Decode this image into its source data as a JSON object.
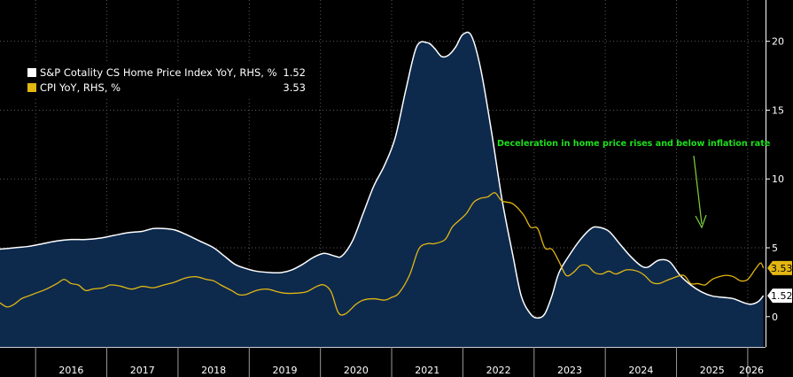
{
  "chart_data": {
    "type": "area",
    "legend_position": "top-left",
    "grid": true,
    "annotation": "Deceleration in home price rises and below inflation rate",
    "x_tick_labels": [
      "2016",
      "2017",
      "2018",
      "2019",
      "2020",
      "2021",
      "2022",
      "2023",
      "2024",
      "2025",
      "2026"
    ],
    "y_tick_labels": [
      "0",
      "5",
      "10",
      "15",
      "20"
    ],
    "ylim": [
      -2.2,
      23
    ],
    "xlim": [
      2015.5,
      2026.25
    ],
    "series": [
      {
        "name": "S&P Cotality CS Home Price Index YoY, RHS, %",
        "value_label": "1.52",
        "color": "#ffffff",
        "fill": "#0d2a4d",
        "points": [
          [
            2015.5,
            4.9
          ],
          [
            2015.7,
            5.0
          ],
          [
            2015.9,
            5.1
          ],
          [
            2016.1,
            5.3
          ],
          [
            2016.3,
            5.5
          ],
          [
            2016.5,
            5.6
          ],
          [
            2016.7,
            5.6
          ],
          [
            2016.9,
            5.7
          ],
          [
            2017.1,
            5.9
          ],
          [
            2017.3,
            6.1
          ],
          [
            2017.5,
            6.2
          ],
          [
            2017.65,
            6.4
          ],
          [
            2017.8,
            6.4
          ],
          [
            2017.95,
            6.3
          ],
          [
            2018.1,
            6.0
          ],
          [
            2018.3,
            5.5
          ],
          [
            2018.5,
            5.0
          ],
          [
            2018.65,
            4.4
          ],
          [
            2018.8,
            3.8
          ],
          [
            2018.95,
            3.5
          ],
          [
            2019.1,
            3.3
          ],
          [
            2019.3,
            3.2
          ],
          [
            2019.45,
            3.2
          ],
          [
            2019.6,
            3.4
          ],
          [
            2019.75,
            3.8
          ],
          [
            2019.9,
            4.3
          ],
          [
            2020.05,
            4.6
          ],
          [
            2020.2,
            4.4
          ],
          [
            2020.3,
            4.4
          ],
          [
            2020.45,
            5.5
          ],
          [
            2020.6,
            7.5
          ],
          [
            2020.75,
            9.5
          ],
          [
            2020.9,
            11.0
          ],
          [
            2021.05,
            13.0
          ],
          [
            2021.2,
            16.5
          ],
          [
            2021.35,
            19.6
          ],
          [
            2021.5,
            19.9
          ],
          [
            2021.6,
            19.5
          ],
          [
            2021.7,
            18.9
          ],
          [
            2021.8,
            19.0
          ],
          [
            2021.9,
            19.6
          ],
          [
            2022.0,
            20.5
          ],
          [
            2022.12,
            20.4
          ],
          [
            2022.25,
            18.0
          ],
          [
            2022.4,
            13.5
          ],
          [
            2022.55,
            8.5
          ],
          [
            2022.7,
            4.5
          ],
          [
            2022.82,
            1.5
          ],
          [
            2022.95,
            0.2
          ],
          [
            2023.05,
            -0.1
          ],
          [
            2023.15,
            0.2
          ],
          [
            2023.25,
            1.5
          ],
          [
            2023.35,
            3.2
          ],
          [
            2023.5,
            4.5
          ],
          [
            2023.65,
            5.6
          ],
          [
            2023.8,
            6.4
          ],
          [
            2023.9,
            6.5
          ],
          [
            2024.05,
            6.2
          ],
          [
            2024.2,
            5.3
          ],
          [
            2024.35,
            4.4
          ],
          [
            2024.5,
            3.7
          ],
          [
            2024.6,
            3.6
          ],
          [
            2024.75,
            4.1
          ],
          [
            2024.9,
            4.0
          ],
          [
            2025.05,
            3.0
          ],
          [
            2025.2,
            2.3
          ],
          [
            2025.35,
            1.8
          ],
          [
            2025.5,
            1.5
          ],
          [
            2025.65,
            1.4
          ],
          [
            2025.8,
            1.3
          ],
          [
            2025.95,
            1.0
          ],
          [
            2026.05,
            0.9
          ],
          [
            2026.15,
            1.1
          ],
          [
            2026.22,
            1.52
          ]
        ]
      },
      {
        "name": "CPI YoY, RHS, %",
        "value_label": "3.53",
        "color": "#e2b613",
        "points": [
          [
            2015.5,
            1.0
          ],
          [
            2015.6,
            0.7
          ],
          [
            2015.7,
            0.9
          ],
          [
            2015.8,
            1.3
          ],
          [
            2015.9,
            1.5
          ],
          [
            2016.0,
            1.7
          ],
          [
            2016.15,
            2.0
          ],
          [
            2016.3,
            2.4
          ],
          [
            2016.4,
            2.7
          ],
          [
            2016.5,
            2.4
          ],
          [
            2016.6,
            2.3
          ],
          [
            2016.7,
            1.9
          ],
          [
            2016.8,
            2.0
          ],
          [
            2016.95,
            2.1
          ],
          [
            2017.05,
            2.3
          ],
          [
            2017.2,
            2.2
          ],
          [
            2017.35,
            2.0
          ],
          [
            2017.5,
            2.2
          ],
          [
            2017.65,
            2.1
          ],
          [
            2017.8,
            2.3
          ],
          [
            2017.95,
            2.5
          ],
          [
            2018.1,
            2.8
          ],
          [
            2018.25,
            2.9
          ],
          [
            2018.4,
            2.7
          ],
          [
            2018.5,
            2.6
          ],
          [
            2018.6,
            2.3
          ],
          [
            2018.75,
            1.9
          ],
          [
            2018.85,
            1.6
          ],
          [
            2018.95,
            1.6
          ],
          [
            2019.1,
            1.9
          ],
          [
            2019.25,
            2.0
          ],
          [
            2019.4,
            1.8
          ],
          [
            2019.5,
            1.7
          ],
          [
            2019.65,
            1.7
          ],
          [
            2019.8,
            1.8
          ],
          [
            2019.95,
            2.2
          ],
          [
            2020.05,
            2.3
          ],
          [
            2020.15,
            1.8
          ],
          [
            2020.25,
            0.3
          ],
          [
            2020.35,
            0.2
          ],
          [
            2020.5,
            0.9
          ],
          [
            2020.6,
            1.2
          ],
          [
            2020.75,
            1.3
          ],
          [
            2020.9,
            1.2
          ],
          [
            2021.0,
            1.4
          ],
          [
            2021.1,
            1.7
          ],
          [
            2021.25,
            3.0
          ],
          [
            2021.38,
            4.9
          ],
          [
            2021.5,
            5.3
          ],
          [
            2021.6,
            5.3
          ],
          [
            2021.75,
            5.6
          ],
          [
            2021.85,
            6.5
          ],
          [
            2021.95,
            7.0
          ],
          [
            2022.05,
            7.5
          ],
          [
            2022.15,
            8.3
          ],
          [
            2022.25,
            8.6
          ],
          [
            2022.35,
            8.7
          ],
          [
            2022.45,
            9.0
          ],
          [
            2022.55,
            8.4
          ],
          [
            2022.7,
            8.2
          ],
          [
            2022.85,
            7.4
          ],
          [
            2022.95,
            6.5
          ],
          [
            2023.05,
            6.4
          ],
          [
            2023.15,
            5.0
          ],
          [
            2023.25,
            4.9
          ],
          [
            2023.35,
            4.0
          ],
          [
            2023.45,
            3.0
          ],
          [
            2023.55,
            3.2
          ],
          [
            2023.65,
            3.7
          ],
          [
            2023.75,
            3.7
          ],
          [
            2023.85,
            3.2
          ],
          [
            2023.95,
            3.1
          ],
          [
            2024.05,
            3.3
          ],
          [
            2024.15,
            3.1
          ],
          [
            2024.3,
            3.4
          ],
          [
            2024.45,
            3.3
          ],
          [
            2024.55,
            3.0
          ],
          [
            2024.65,
            2.5
          ],
          [
            2024.75,
            2.4
          ],
          [
            2024.85,
            2.6
          ],
          [
            2024.95,
            2.8
          ],
          [
            2025.1,
            3.0
          ],
          [
            2025.2,
            2.4
          ],
          [
            2025.3,
            2.4
          ],
          [
            2025.4,
            2.3
          ],
          [
            2025.5,
            2.7
          ],
          [
            2025.6,
            2.9
          ],
          [
            2025.7,
            3.0
          ],
          [
            2025.8,
            2.9
          ],
          [
            2025.9,
            2.6
          ],
          [
            2026.0,
            2.7
          ],
          [
            2026.1,
            3.4
          ],
          [
            2026.18,
            3.9
          ],
          [
            2026.22,
            3.53
          ]
        ]
      }
    ]
  }
}
